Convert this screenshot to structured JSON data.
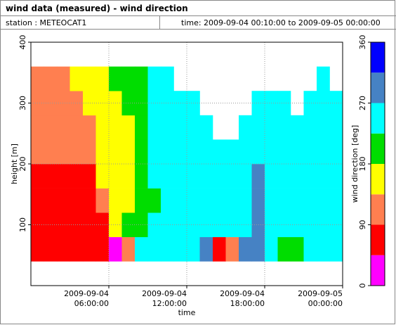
{
  "chart_data": {
    "type": "heatmap",
    "title": "wind data (measured) - wind direction",
    "station": "station : METEOCAT1",
    "period": "time: 2009-09-04 00:10:00 to 2009-09-05 00:00:00",
    "xlabel": "time",
    "ylabel": "height [m]",
    "xlim": [
      "2009-09-04 00:00:00",
      "2009-09-05 00:00:00"
    ],
    "xticks": [
      {
        "value": "2009-09-04 06:00:00",
        "label": [
          "2009-09-04",
          "06:00:00"
        ]
      },
      {
        "value": "2009-09-04 12:00:00",
        "label": [
          "2009-09-04",
          "12:00:00"
        ]
      },
      {
        "value": "2009-09-04 18:00:00",
        "label": [
          "2009-09-04",
          "18:00:00"
        ]
      },
      {
        "value": "2009-09-05 00:00:00",
        "label": [
          "2009-09-05",
          "00:00:00"
        ]
      }
    ],
    "ylim": [
      0,
      400
    ],
    "yticks": [
      100,
      200,
      300,
      400
    ],
    "grid": true,
    "x": [
      "2009-09-04 00:00:00",
      "2009-09-04 01:00:00",
      "2009-09-04 02:00:00",
      "2009-09-04 03:00:00",
      "2009-09-04 04:00:00",
      "2009-09-04 05:00:00",
      "2009-09-04 06:00:00",
      "2009-09-04 07:00:00",
      "2009-09-04 08:00:00",
      "2009-09-04 09:00:00",
      "2009-09-04 10:00:00",
      "2009-09-04 11:00:00",
      "2009-09-04 12:00:00",
      "2009-09-04 13:00:00",
      "2009-09-04 14:00:00",
      "2009-09-04 15:00:00",
      "2009-09-04 16:00:00",
      "2009-09-04 17:00:00",
      "2009-09-04 18:00:00",
      "2009-09-04 19:00:00",
      "2009-09-04 20:00:00",
      "2009-09-04 21:00:00",
      "2009-09-04 22:00:00",
      "2009-09-04 23:00:00"
    ],
    "y": [
      60,
      100,
      140,
      180,
      220,
      260,
      300,
      340
    ],
    "values": [
      [
        70,
        70,
        70,
        70,
        110,
        110,
        110,
        110
      ],
      [
        70,
        70,
        70,
        70,
        110,
        110,
        110,
        110
      ],
      [
        70,
        70,
        70,
        70,
        110,
        110,
        110,
        110
      ],
      [
        70,
        70,
        70,
        70,
        110,
        110,
        110,
        160
      ],
      [
        70,
        70,
        70,
        70,
        110,
        110,
        160,
        160
      ],
      [
        70,
        70,
        110,
        160,
        160,
        160,
        160,
        160
      ],
      [
        20,
        160,
        160,
        160,
        160,
        160,
        160,
        200
      ],
      [
        110,
        200,
        160,
        160,
        160,
        160,
        200,
        200
      ],
      [
        250,
        200,
        200,
        200,
        200,
        200,
        200,
        200
      ],
      [
        250,
        250,
        200,
        250,
        250,
        250,
        250,
        250
      ],
      [
        250,
        250,
        250,
        250,
        250,
        250,
        250,
        250
      ],
      [
        250,
        250,
        250,
        250,
        250,
        250,
        250,
        null
      ],
      [
        250,
        250,
        250,
        250,
        250,
        250,
        250,
        null
      ],
      [
        290,
        250,
        250,
        250,
        250,
        250,
        null,
        null
      ],
      [
        70,
        250,
        250,
        250,
        250,
        null,
        null,
        null
      ],
      [
        110,
        250,
        250,
        250,
        250,
        null,
        null,
        null
      ],
      [
        290,
        250,
        250,
        250,
        250,
        250,
        null,
        null
      ],
      [
        290,
        290,
        290,
        290,
        250,
        250,
        250,
        null
      ],
      [
        250,
        250,
        250,
        250,
        250,
        250,
        250,
        null
      ],
      [
        200,
        250,
        250,
        250,
        250,
        250,
        250,
        null
      ],
      [
        200,
        250,
        250,
        250,
        250,
        250,
        null,
        null
      ],
      [
        250,
        250,
        250,
        250,
        250,
        250,
        250,
        null
      ],
      [
        250,
        250,
        250,
        250,
        250,
        250,
        250,
        250
      ],
      [
        250,
        250,
        250,
        250,
        250,
        250,
        250,
        null
      ]
    ],
    "colorbar": {
      "label": "wind direction [deg]",
      "bounds": [
        0,
        45,
        90,
        135,
        180,
        225,
        270,
        315,
        360
      ],
      "colors": [
        "#ff00ff",
        "#ff0000",
        "#ff7f50",
        "#ffff00",
        "#00dd00",
        "#00ffff",
        "#4682c4",
        "#0000ff"
      ],
      "ticks": [
        0,
        90,
        180,
        270,
        360
      ]
    }
  }
}
